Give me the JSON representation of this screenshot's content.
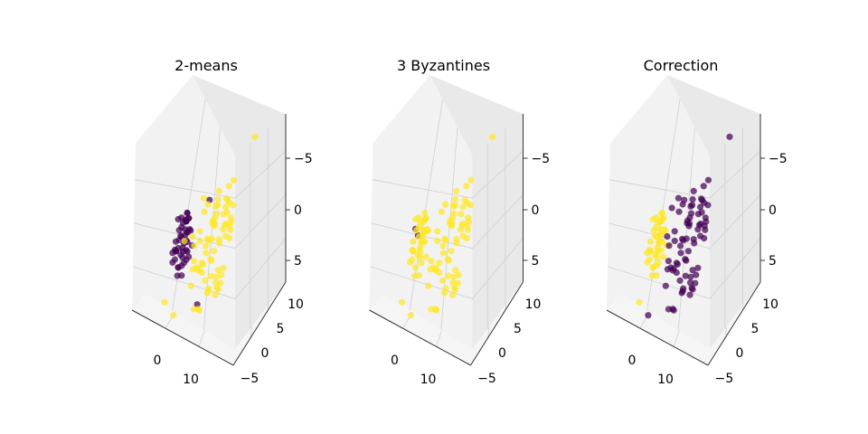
{
  "chart_data": [
    {
      "type": "scatter",
      "title": "2-means",
      "xticks": [
        "0",
        "10"
      ],
      "yticks": [
        "−5",
        "0",
        "5",
        "10"
      ],
      "zticks": [
        "−5",
        "0",
        "5"
      ],
      "xlim": [
        -8,
        22
      ],
      "ylim": [
        -8,
        13
      ],
      "zlim": [
        -7,
        8
      ],
      "series": [
        {
          "color": "#440154",
          "x": [
            -2,
            -3,
            -1,
            -2,
            -4,
            -3,
            -1,
            -2,
            -3,
            -2,
            -1,
            -4,
            -2,
            -3,
            -1,
            -2,
            -3,
            -4,
            -2,
            -1,
            -3,
            -2,
            -1,
            -3,
            -2,
            -4,
            -2,
            -3,
            -1,
            -2,
            -3,
            -2,
            -1,
            -2,
            0,
            -3,
            -2,
            -1,
            -4,
            -2,
            -3,
            -2,
            -1,
            2,
            5,
            -3,
            -2,
            -1,
            -3,
            -2
          ],
          "y": [
            3,
            2,
            4,
            5,
            3,
            6,
            2,
            4,
            5,
            3,
            4,
            2,
            5,
            3,
            4,
            6,
            2,
            3,
            4,
            5,
            3,
            2,
            4,
            5,
            3,
            4,
            6,
            2,
            3,
            5,
            4,
            3,
            2,
            6,
            4,
            3,
            5,
            4,
            2,
            3,
            4,
            5,
            6,
            4,
            5,
            3,
            2,
            4,
            6,
            5
          ],
          "z": [
            2,
            1,
            3,
            2,
            0,
            1,
            -1,
            0,
            2,
            3,
            1,
            -1,
            0,
            -2,
            1,
            2,
            0,
            -1,
            -2,
            1,
            3,
            2,
            0,
            -1,
            1,
            -3,
            -2,
            0,
            1,
            2,
            -1,
            -3,
            0,
            2,
            1,
            -2,
            -1,
            3,
            0,
            -2,
            1,
            2,
            -1,
            -7,
            3,
            0,
            1,
            -1,
            2,
            -2
          ]
        },
        {
          "color": "#fde725",
          "x": [
            6,
            9,
            12,
            8,
            15,
            11,
            7,
            13,
            10,
            14,
            6,
            9,
            12,
            5,
            8,
            11,
            14,
            7,
            10,
            13,
            16,
            9,
            6,
            12,
            8,
            11,
            15,
            7,
            10,
            13,
            4,
            9,
            12,
            6,
            10,
            14,
            8,
            11,
            5,
            13,
            9,
            7,
            12,
            10,
            15,
            6,
            11,
            8,
            14,
            9,
            3,
            7,
            12,
            10,
            5,
            9,
            13,
            8,
            11,
            6,
            14,
            10,
            7,
            12,
            4,
            9,
            11,
            8,
            13,
            6,
            10,
            18,
            2,
            0,
            1
          ],
          "y": [
            -2,
            0,
            2,
            -4,
            1,
            3,
            -1,
            -3,
            4,
            0,
            2,
            -5,
            -2,
            1,
            5,
            -1,
            -4,
            3,
            0,
            2,
            -2,
            4,
            -3,
            1,
            -1,
            5,
            -2,
            0,
            3,
            -4,
            2,
            -1,
            4,
            -3,
            1,
            -5,
            2,
            0,
            -2,
            3,
            -1,
            5,
            -3,
            2,
            0,
            4,
            -2,
            -4,
            1,
            3,
            0,
            -1,
            2,
            -3,
            1,
            -2,
            4,
            0,
            -1,
            3,
            -4,
            2,
            -5,
            1,
            0,
            -3,
            4,
            -2,
            1,
            3,
            -1,
            6,
            -6,
            -7,
            0
          ],
          "z": [
            -2,
            -4,
            -1,
            -6,
            2,
            0,
            -3,
            -5,
            1,
            3,
            -1,
            -6,
            -4,
            0,
            -2,
            2,
            -5,
            -3,
            1,
            4,
            3,
            -6,
            -1,
            0,
            -4,
            -2,
            1,
            3,
            -5,
            2,
            -3,
            0,
            -1,
            -6,
            2,
            -4,
            1,
            3,
            -2,
            0,
            -5,
            2,
            -1,
            4,
            1,
            -3,
            2,
            -2,
            0,
            3,
            -4,
            -2,
            2,
            -5,
            1,
            -1,
            4,
            0,
            -6,
            3,
            -3,
            -1,
            2,
            -4,
            0,
            5,
            1,
            -2,
            3,
            -6,
            0,
            7,
            -5,
            -3,
            1
          ]
        }
      ]
    },
    {
      "type": "scatter",
      "title": "3 Byzantines",
      "xticks": [
        "0",
        "10"
      ],
      "yticks": [
        "−5",
        "0",
        "5",
        "10"
      ],
      "zticks": [
        "−5",
        "0",
        "5"
      ],
      "xlim": [
        -8,
        22
      ],
      "ylim": [
        -8,
        13
      ],
      "zlim": [
        -7,
        8
      ],
      "series": [
        {
          "color": "#440154",
          "x": [
            -3,
            -3
          ],
          "y": [
            3,
            4
          ],
          "z": [
            2,
            1
          ]
        },
        {
          "color": "#fde725",
          "x": [
            -2,
            -3,
            -1,
            -2,
            -4,
            -3,
            -1,
            -2,
            -3,
            -2,
            -1,
            -4,
            -2,
            -3,
            -1,
            -2,
            -3,
            -4,
            -2,
            -1,
            -3,
            -2,
            -1,
            -3,
            -2,
            -4,
            -2,
            -3,
            -1,
            -2,
            -3,
            -2,
            -1,
            -2,
            0,
            6,
            9,
            12,
            8,
            15,
            11,
            7,
            13,
            10,
            14,
            6,
            9,
            12,
            5,
            8,
            11,
            14,
            7,
            10,
            13,
            16,
            9,
            6,
            12,
            8,
            11,
            15,
            7,
            10,
            13,
            4,
            9,
            12,
            6,
            10,
            14,
            8,
            11,
            5,
            13,
            9,
            7,
            12,
            10,
            15,
            6,
            11,
            8,
            14,
            9,
            3,
            7,
            12,
            10,
            5,
            9,
            13,
            8,
            11,
            6,
            14,
            10,
            18,
            2,
            0,
            1
          ],
          "y": [
            3,
            2,
            4,
            5,
            3,
            6,
            2,
            4,
            5,
            3,
            4,
            2,
            5,
            3,
            4,
            6,
            2,
            3,
            4,
            5,
            3,
            2,
            4,
            5,
            3,
            4,
            6,
            2,
            3,
            5,
            4,
            3,
            2,
            6,
            4,
            -2,
            0,
            2,
            -4,
            1,
            3,
            -1,
            -3,
            4,
            0,
            2,
            -5,
            -2,
            1,
            5,
            -1,
            -4,
            3,
            0,
            2,
            -2,
            4,
            -3,
            1,
            -1,
            5,
            -2,
            0,
            3,
            -4,
            2,
            -1,
            4,
            -3,
            1,
            -5,
            2,
            0,
            -2,
            3,
            -1,
            5,
            -3,
            2,
            0,
            4,
            -2,
            -4,
            1,
            3,
            0,
            -1,
            2,
            -3,
            1,
            -2,
            4,
            0,
            -1,
            3,
            -4,
            2,
            6,
            -6,
            -7,
            0
          ],
          "z": [
            2,
            1,
            3,
            2,
            0,
            1,
            -1,
            0,
            2,
            3,
            1,
            -1,
            0,
            -2,
            1,
            2,
            0,
            -1,
            -2,
            1,
            3,
            2,
            0,
            -1,
            1,
            -3,
            -2,
            0,
            1,
            2,
            -1,
            -3,
            0,
            2,
            1,
            -2,
            -4,
            -1,
            -6,
            2,
            0,
            -3,
            -5,
            1,
            3,
            -1,
            -6,
            -4,
            0,
            -2,
            2,
            -5,
            -3,
            1,
            4,
            3,
            -6,
            -1,
            0,
            -4,
            -2,
            1,
            3,
            -5,
            2,
            -3,
            0,
            -1,
            -6,
            2,
            -4,
            1,
            3,
            -2,
            0,
            -5,
            2,
            -1,
            4,
            1,
            -3,
            2,
            -2,
            0,
            3,
            -4,
            -2,
            2,
            -5,
            1,
            -1,
            4,
            0,
            -6,
            3,
            -3,
            -1,
            7,
            -5,
            -3,
            1
          ]
        }
      ]
    },
    {
      "type": "scatter",
      "title": "Correction",
      "xticks": [
        "0",
        "10"
      ],
      "yticks": [
        "−5",
        "0",
        "5",
        "10"
      ],
      "zticks": [
        "−5",
        "0",
        "5"
      ],
      "xlim": [
        -8,
        22
      ],
      "ylim": [
        -8,
        13
      ],
      "zlim": [
        -7,
        8
      ],
      "series": [
        {
          "color": "#fde725",
          "x": [
            -2,
            -3,
            -1,
            -2,
            -4,
            -3,
            -1,
            -2,
            -3,
            -2,
            -1,
            -4,
            -2,
            -3,
            -1,
            -2,
            -3,
            -4,
            -2,
            -1,
            -3,
            -2,
            -1,
            -3,
            -2,
            -4,
            -2,
            -3,
            -1,
            -2,
            -3,
            -2,
            -1,
            -2,
            0,
            -3,
            -2,
            -1,
            -4,
            -2,
            -3,
            -2,
            -1,
            0,
            1
          ],
          "y": [
            3,
            2,
            4,
            5,
            3,
            6,
            2,
            4,
            5,
            3,
            4,
            2,
            5,
            3,
            4,
            6,
            2,
            3,
            4,
            5,
            3,
            2,
            4,
            5,
            3,
            4,
            6,
            2,
            3,
            5,
            4,
            3,
            2,
            6,
            4,
            3,
            5,
            4,
            2,
            3,
            4,
            5,
            6,
            -7,
            0
          ],
          "z": [
            2,
            1,
            3,
            2,
            0,
            1,
            -1,
            0,
            2,
            3,
            1,
            -1,
            0,
            -2,
            1,
            2,
            0,
            -1,
            -2,
            1,
            3,
            2,
            0,
            -1,
            1,
            -3,
            -2,
            0,
            1,
            2,
            -1,
            -3,
            0,
            2,
            1,
            -2,
            -1,
            3,
            0,
            -2,
            1,
            2,
            -1,
            -3,
            1
          ]
        },
        {
          "color": "#440154",
          "x": [
            6,
            9,
            12,
            8,
            15,
            11,
            7,
            13,
            10,
            14,
            6,
            9,
            12,
            5,
            8,
            11,
            14,
            7,
            10,
            13,
            16,
            9,
            6,
            12,
            8,
            11,
            15,
            7,
            10,
            13,
            4,
            9,
            12,
            6,
            10,
            14,
            8,
            11,
            5,
            13,
            9,
            7,
            12,
            10,
            15,
            6,
            11,
            8,
            14,
            9,
            3,
            7,
            12,
            10,
            5,
            9,
            13,
            8,
            11,
            6,
            14,
            10,
            7,
            12,
            4,
            9,
            11,
            8,
            13,
            6,
            10,
            18,
            2,
            2,
            5
          ],
          "y": [
            -2,
            0,
            2,
            -4,
            1,
            3,
            -1,
            -3,
            4,
            0,
            2,
            -5,
            -2,
            1,
            5,
            -1,
            -4,
            3,
            0,
            2,
            -2,
            4,
            -3,
            1,
            -1,
            5,
            -2,
            0,
            3,
            -4,
            2,
            -1,
            4,
            -3,
            1,
            -5,
            2,
            0,
            -2,
            3,
            -1,
            5,
            -3,
            2,
            0,
            4,
            -2,
            -4,
            1,
            3,
            0,
            -1,
            2,
            -3,
            1,
            -2,
            4,
            0,
            -1,
            3,
            -4,
            2,
            -5,
            1,
            0,
            -3,
            4,
            -2,
            1,
            3,
            -1,
            6,
            -6,
            4,
            5
          ],
          "z": [
            -2,
            -4,
            -1,
            -6,
            2,
            0,
            -3,
            -5,
            1,
            3,
            -1,
            -6,
            -4,
            0,
            -2,
            2,
            -5,
            -3,
            1,
            4,
            3,
            -6,
            -1,
            0,
            -4,
            -2,
            1,
            3,
            -5,
            2,
            -3,
            0,
            -1,
            -6,
            2,
            -4,
            1,
            3,
            -2,
            0,
            -5,
            2,
            -1,
            4,
            1,
            -3,
            2,
            -2,
            0,
            3,
            -4,
            -2,
            2,
            -5,
            1,
            -1,
            4,
            0,
            -6,
            3,
            -3,
            -1,
            2,
            -4,
            0,
            5,
            1,
            -2,
            3,
            -6,
            0,
            7,
            -5,
            3,
            3
          ]
        }
      ]
    }
  ]
}
